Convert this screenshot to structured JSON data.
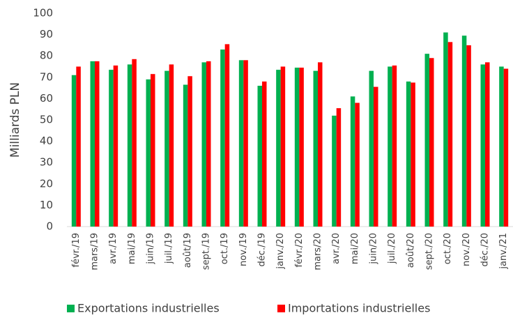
{
  "chart_data": {
    "type": "bar",
    "ylabel": "Milliards PLN",
    "categories": [
      "févr./19",
      "mars/19",
      "avr./19",
      "mai/19",
      "juin/19",
      "juil./19",
      "août/19",
      "sept./19",
      "oct./19",
      "nov./19",
      "déc./19",
      "janv./20",
      "févr./20",
      "mars/20",
      "avr./20",
      "mai/20",
      "juin/20",
      "juil./20",
      "août/20",
      "sept./20",
      "oct./20",
      "nov./20",
      "déc./20",
      "janv./21"
    ],
    "series": [
      {
        "name": "Exportations industrielles",
        "color": "#00b050",
        "values": [
          71,
          77.5,
          73.5,
          76,
          69,
          73,
          66.5,
          77,
          83,
          78,
          66,
          73.5,
          74.5,
          73,
          52,
          61,
          73,
          75,
          68,
          81,
          91,
          89.5,
          76,
          75
        ]
      },
      {
        "name": "Importations industrielles",
        "color": "#ff0000",
        "values": [
          75,
          77.5,
          75.5,
          78.5,
          71.5,
          76,
          70.5,
          77.5,
          85.5,
          78,
          68,
          75,
          74.5,
          77,
          55.5,
          58,
          65.5,
          75.5,
          67.5,
          79,
          86.5,
          85,
          77,
          74
        ]
      }
    ],
    "ylim": [
      0,
      100
    ],
    "yticks": [
      0,
      10,
      20,
      30,
      40,
      50,
      60,
      70,
      80,
      90,
      100
    ],
    "grid": false,
    "legend": "bottom"
  }
}
